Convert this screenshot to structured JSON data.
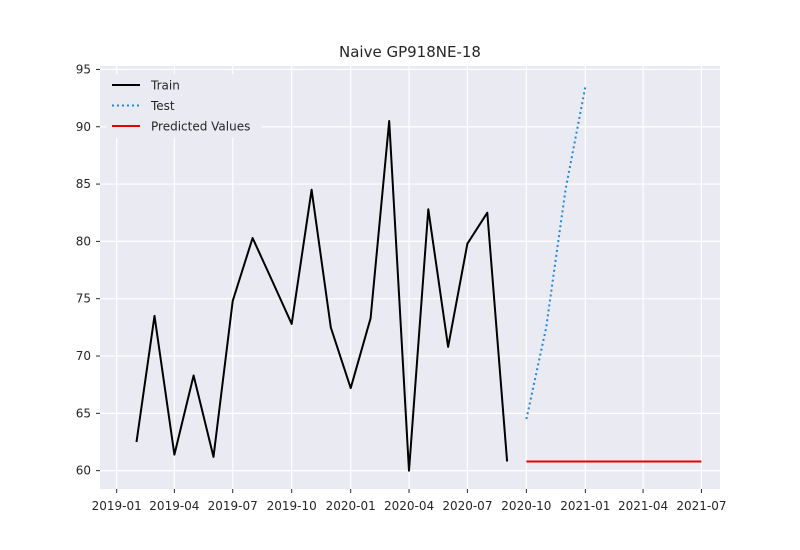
{
  "chart_data": {
    "type": "line",
    "title": "Naive GP918NE-18",
    "xlabel": "",
    "ylabel": "",
    "ylim": [
      58.4,
      95.3
    ],
    "xlim": [
      "2018-12-06",
      "2021-07-30"
    ],
    "grid": true,
    "background": "#eaeaf2",
    "legend_position": "top-left",
    "x_ticks": [
      {
        "date": "2019-01-01",
        "label": "2019-01"
      },
      {
        "date": "2019-04-01",
        "label": "2019-04"
      },
      {
        "date": "2019-07-01",
        "label": "2019-07"
      },
      {
        "date": "2019-10-01",
        "label": "2019-10"
      },
      {
        "date": "2020-01-01",
        "label": "2020-01"
      },
      {
        "date": "2020-04-01",
        "label": "2020-04"
      },
      {
        "date": "2020-07-01",
        "label": "2020-07"
      },
      {
        "date": "2020-10-01",
        "label": "2020-10"
      },
      {
        "date": "2021-01-01",
        "label": "2021-01"
      },
      {
        "date": "2021-04-01",
        "label": "2021-04"
      },
      {
        "date": "2021-07-01",
        "label": "2021-07"
      }
    ],
    "y_ticks": [
      60,
      65,
      70,
      75,
      80,
      85,
      90,
      95
    ],
    "series": [
      {
        "name": "Train",
        "color": "#000000",
        "style": "solid",
        "x": [
          "2019-02-01",
          "2019-03-01",
          "2019-04-01",
          "2019-05-01",
          "2019-06-01",
          "2019-07-01",
          "2019-08-01",
          "2019-09-01",
          "2019-10-01",
          "2019-11-01",
          "2019-12-01",
          "2020-01-01",
          "2020-02-01",
          "2020-03-01",
          "2020-04-01",
          "2020-05-01",
          "2020-06-01",
          "2020-07-01",
          "2020-08-01",
          "2020-09-01"
        ],
        "y": [
          62.5,
          73.5,
          61.4,
          68.3,
          61.2,
          74.8,
          80.3,
          76.5,
          72.8,
          84.5,
          72.5,
          67.2,
          73.3,
          90.5,
          60.0,
          82.8,
          70.8,
          79.8,
          82.5,
          60.8
        ]
      },
      {
        "name": "Test",
        "color": "#1e88e5",
        "style": "dotted",
        "x": [
          "2020-10-01",
          "2020-11-01",
          "2020-12-01",
          "2021-01-01"
        ],
        "y": [
          64.5,
          72.5,
          84.5,
          93.5
        ]
      },
      {
        "name": "Predicted Values",
        "color": "#e50000",
        "style": "solid",
        "x": [
          "2020-10-01",
          "2021-07-01"
        ],
        "y": [
          60.8,
          60.8
        ]
      }
    ]
  }
}
